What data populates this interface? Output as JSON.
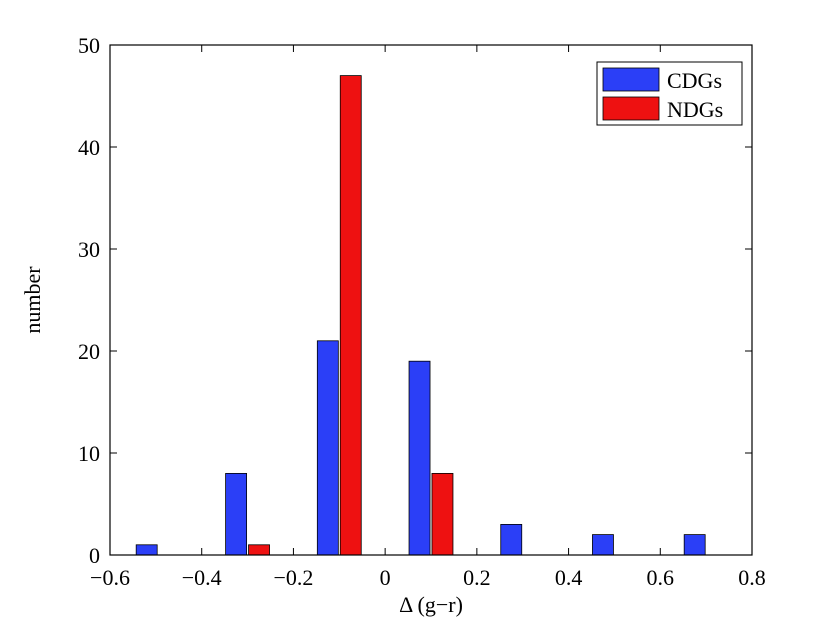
{
  "chart_data": {
    "type": "bar",
    "title": "",
    "xlabel": "Δ (g−r)",
    "ylabel": "number",
    "xlim": [
      -0.6,
      0.8
    ],
    "ylim": [
      0,
      50
    ],
    "xticks": [
      -0.6,
      -0.4,
      -0.2,
      0,
      0.2,
      0.4,
      0.6,
      0.8
    ],
    "xtick_labels": [
      "−0.6",
      "−0.4",
      "−0.2",
      "0",
      "0.2",
      "0.4",
      "0.6",
      "0.8"
    ],
    "yticks": [
      0,
      10,
      20,
      30,
      40,
      50
    ],
    "ytick_labels": [
      "0",
      "10",
      "20",
      "30",
      "40",
      "50"
    ],
    "grid": false,
    "legend_position": "top-right",
    "series": [
      {
        "name": "CDGs",
        "color": "#2b3ff7",
        "x": [
          -0.52,
          -0.325,
          -0.125,
          0.075,
          0.275,
          0.475,
          0.675
        ],
        "values": [
          1,
          8,
          21,
          19,
          3,
          2,
          2
        ]
      },
      {
        "name": "NDGs",
        "color": "#ee1111",
        "x": [
          -0.275,
          -0.075,
          0.125
        ],
        "values": [
          1,
          47,
          8
        ]
      }
    ]
  }
}
